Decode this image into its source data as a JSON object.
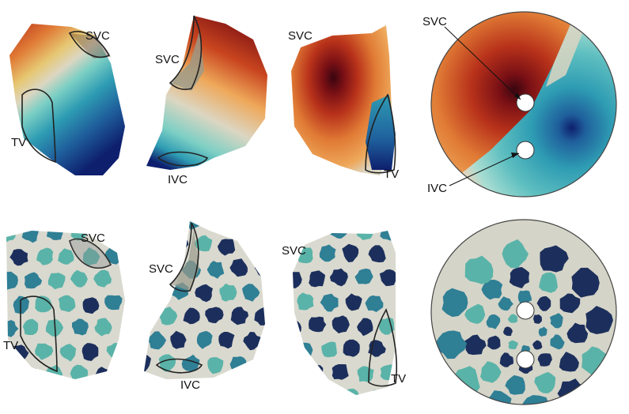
{
  "labels": {
    "svc": "SVC",
    "ivc": "IVC",
    "tv": "TV"
  },
  "colors": {
    "dark_red": "#5a0a12",
    "red": "#b8321a",
    "orange": "#e07a35",
    "light_orange": "#eea85a",
    "yellow": "#e6c772",
    "beige": "#dcd6c2",
    "mint": "#7ccfc4",
    "teal": "#2e9cb3",
    "blue": "#1f5f9c",
    "navy": "#0e1f6e",
    "spot_light": "#5ab3a8",
    "spot_mid": "#2f7f95",
    "spot_dark": "#1c2f5c",
    "base_gray": "#d9d9cf"
  },
  "panels": {
    "top_row": "activation-map",
    "bottom_row": "fibrosis-pattern"
  }
}
